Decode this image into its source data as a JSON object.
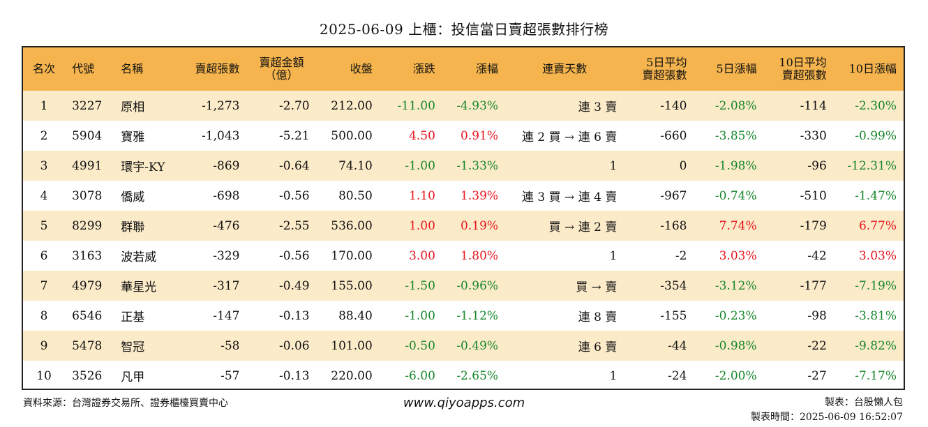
{
  "title": "2025-06-09 上櫃：投信當日賣超張數排行榜",
  "headers": [
    "名次",
    "代號",
    "名稱",
    "賣超張數",
    "賣超金額\n（億）",
    "收盤",
    "漲跌",
    "漲幅",
    "連賣天數",
    "5日平均\n賣超張數",
    "5日漲幅",
    "10日平均\n賣超張數",
    "10日漲幅"
  ],
  "rows": [
    [
      "1",
      "3227",
      "原相",
      "-1,273",
      "-2.70",
      "212.00",
      "-11.00",
      "-4.93%",
      "連 3 賣",
      "-140",
      "-2.08%",
      "-114",
      "-2.30%"
    ],
    [
      "2",
      "5904",
      "寶雅",
      "-1,043",
      "-5.21",
      "500.00",
      "4.50",
      "0.91%",
      "連 2 買 → 連 6 賣",
      "-660",
      "-3.85%",
      "-330",
      "-0.99%"
    ],
    [
      "3",
      "4991",
      "環宇-KY",
      "-869",
      "-0.64",
      "74.10",
      "-1.00",
      "-1.33%",
      "1",
      "0",
      "-1.98%",
      "-96",
      "-12.31%"
    ],
    [
      "4",
      "3078",
      "僑威",
      "-698",
      "-0.56",
      "80.50",
      "1.10",
      "1.39%",
      "連 3 買 → 連 4 賣",
      "-967",
      "-0.74%",
      "-510",
      "-1.47%"
    ],
    [
      "5",
      "8299",
      "群聯",
      "-476",
      "-2.55",
      "536.00",
      "1.00",
      "0.19%",
      "買 → 連 2 賣",
      "-168",
      "7.74%",
      "-179",
      "6.77%"
    ],
    [
      "6",
      "3163",
      "波若威",
      "-329",
      "-0.56",
      "170.00",
      "3.00",
      "1.80%",
      "1",
      "-2",
      "3.03%",
      "-42",
      "3.03%"
    ],
    [
      "7",
      "4979",
      "華星光",
      "-317",
      "-0.49",
      "155.00",
      "-1.50",
      "-0.96%",
      "買 → 賣",
      "-354",
      "-3.12%",
      "-177",
      "-7.19%"
    ],
    [
      "8",
      "6546",
      "正基",
      "-147",
      "-0.13",
      "88.40",
      "-1.00",
      "-1.12%",
      "連 8 賣",
      "-155",
      "-0.23%",
      "-98",
      "-3.81%"
    ],
    [
      "9",
      "5478",
      "智冠",
      "-58",
      "-0.06",
      "101.00",
      "-0.50",
      "-0.49%",
      "連 6 賣",
      "-44",
      "-0.98%",
      "-22",
      "-9.82%"
    ],
    [
      "10",
      "3526",
      "凡甲",
      "-57",
      "-0.13",
      "220.00",
      "-6.00",
      "-2.65%",
      "1",
      "-24",
      "-2.00%",
      "-27",
      "-7.17%"
    ]
  ],
  "colors": {
    "up": "#e8141c",
    "down": "#16862a",
    "header_bg": "#f5b44d",
    "stripe": "#fcebc9"
  },
  "footer": {
    "source": "資料來源：台灣證券交易所、證券櫃檯買賣中心",
    "site": "www.qiyoapps.com",
    "author": "製表：台股懶人包",
    "made_time": "製表時間：2025-06-09 16:52:07"
  }
}
